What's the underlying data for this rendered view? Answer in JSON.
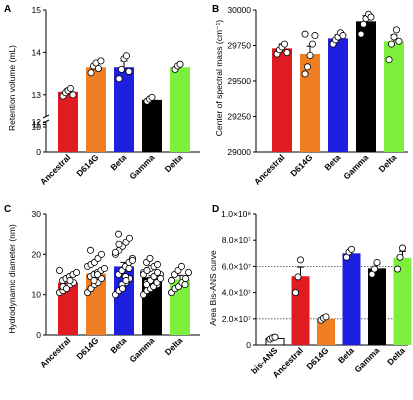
{
  "figure": {
    "panel_labels": [
      "A",
      "B",
      "C",
      "D"
    ]
  },
  "chart_data": [
    {
      "panel": "A",
      "type": "bar",
      "ylabel": "Retention volume (mL)",
      "categories": [
        "Ancestral",
        "D614G",
        "Beta",
        "Gamma",
        "Delta"
      ],
      "colors": [
        "#e11b22",
        "#f07f24",
        "#1f1fe0",
        "#000000",
        "#7cf03d"
      ],
      "values": [
        13.07,
        13.65,
        13.65,
        12.88,
        13.65
      ],
      "errors": [
        0.08,
        0.1,
        0.15,
        0.05,
        0.05
      ],
      "points": [
        [
          12.97,
          13.05,
          13.1,
          13.15,
          13.0
        ],
        [
          13.52,
          13.68,
          13.75,
          13.62,
          13.8
        ],
        [
          13.38,
          13.6,
          13.85,
          13.92,
          13.55
        ],
        [
          12.85,
          12.9,
          12.94
        ],
        [
          13.6,
          13.68,
          13.72
        ]
      ],
      "axis_break": true,
      "ylim_lower": [
        0,
        12
      ],
      "ylim_upper": [
        12.5,
        15
      ],
      "yticks": [
        "0",
        "10",
        "11",
        "12",
        "13",
        "14",
        "15"
      ],
      "grid": false
    },
    {
      "panel": "B",
      "type": "bar",
      "ylabel": "Center of spectral mass (cm⁻¹)",
      "categories": [
        "Ancestral",
        "D614G",
        "Beta",
        "Gamma",
        "Delta"
      ],
      "colors": [
        "#e11b22",
        "#f07f24",
        "#1f1fe0",
        "#000000",
        "#7cf03d"
      ],
      "values": [
        29730,
        29690,
        29800,
        29920,
        29780
      ],
      "errors": [
        30,
        55,
        25,
        40,
        45
      ],
      "points": [
        [
          29690,
          29720,
          29740,
          29760,
          29700
        ],
        [
          29550,
          29600,
          29680,
          29760,
          29820,
          29830
        ],
        [
          29760,
          29790,
          29810,
          29840,
          29820
        ],
        [
          29830,
          29900,
          29940,
          29970,
          29950
        ],
        [
          29650,
          29760,
          29810,
          29860,
          29780
        ]
      ],
      "ylim": [
        29000,
        30000
      ],
      "yticks": [
        "29000",
        "29250",
        "29500",
        "29750",
        "30000"
      ],
      "grid": false
    },
    {
      "panel": "C",
      "type": "bar",
      "ylabel": "Hydrodynamic diameter (nm)",
      "categories": [
        "Ancestral",
        "D614G",
        "Beta",
        "Gamma",
        "Delta"
      ],
      "colors": [
        "#e11b22",
        "#f07f24",
        "#1f1fe0",
        "#000000",
        "#7cf03d"
      ],
      "values": [
        13,
        15.2,
        17,
        14.3,
        13.8
      ],
      "errors": [
        0.7,
        0.6,
        1.0,
        0.4,
        1.0
      ],
      "points": [
        [
          10.5,
          11,
          12,
          12.5,
          13,
          13.5,
          14,
          14.5,
          15,
          15.5,
          16,
          12,
          11.5,
          13.5
        ],
        [
          10.5,
          11.5,
          12.5,
          13,
          14,
          14.5,
          15,
          15.5,
          16,
          16.5,
          17,
          17.5,
          18,
          19,
          20,
          21,
          13.5,
          15
        ],
        [
          10,
          11,
          12,
          13,
          14,
          15,
          16,
          17,
          18,
          19,
          20,
          21,
          22,
          23,
          24,
          25,
          12.5,
          14.5,
          16.5,
          18.5,
          20.5,
          22.5,
          11.5,
          13.5
        ],
        [
          10,
          11,
          11.5,
          12,
          12.5,
          13,
          13.5,
          14,
          14.5,
          15,
          15.5,
          16,
          16.5,
          17,
          17.5,
          18,
          19,
          12,
          13,
          14,
          15,
          16,
          13.5,
          14.5,
          15.5,
          12.5
        ],
        [
          10.5,
          11.5,
          12,
          13,
          14,
          15,
          16,
          17,
          12.5,
          15.5,
          13.5
        ]
      ],
      "ylim": [
        0,
        30
      ],
      "yticks": [
        "0",
        "10",
        "20",
        "30"
      ],
      "grid": false
    },
    {
      "panel": "D",
      "type": "bar",
      "ylabel": "Area Bis-ANS curve",
      "categories": [
        "bis-ANS",
        "Ancestral",
        "D614G",
        "Beta",
        "Gamma",
        "Delta"
      ],
      "colors": [
        "#ffffff",
        "#e11b22",
        "#f07f24",
        "#1f1fe0",
        "#000000",
        "#7cf03d"
      ],
      "values": [
        5000000,
        52500000,
        20000000,
        70000000,
        58500000,
        66500000
      ],
      "errors": [
        1000000,
        7000000,
        1000000,
        3000000,
        3500000,
        5000000
      ],
      "points": [
        [
          4500000,
          5500000,
          6000000
        ],
        [
          40000000,
          52000000,
          65000000
        ],
        [
          19000000,
          20500000,
          21500000
        ],
        [
          67000000,
          71000000,
          73000000
        ],
        [
          54000000,
          58000000,
          63000000
        ],
        [
          58000000,
          67000000,
          74000000
        ]
      ],
      "reference_lines": [
        60000000,
        20000000
      ],
      "ylim": [
        0,
        100000000
      ],
      "yticks": [
        "0",
        "2.0×10⁷",
        "4.0×10⁷",
        "6.0×10⁷",
        "8.0×10⁷",
        "1.0×10⁸"
      ],
      "grid": false
    }
  ]
}
